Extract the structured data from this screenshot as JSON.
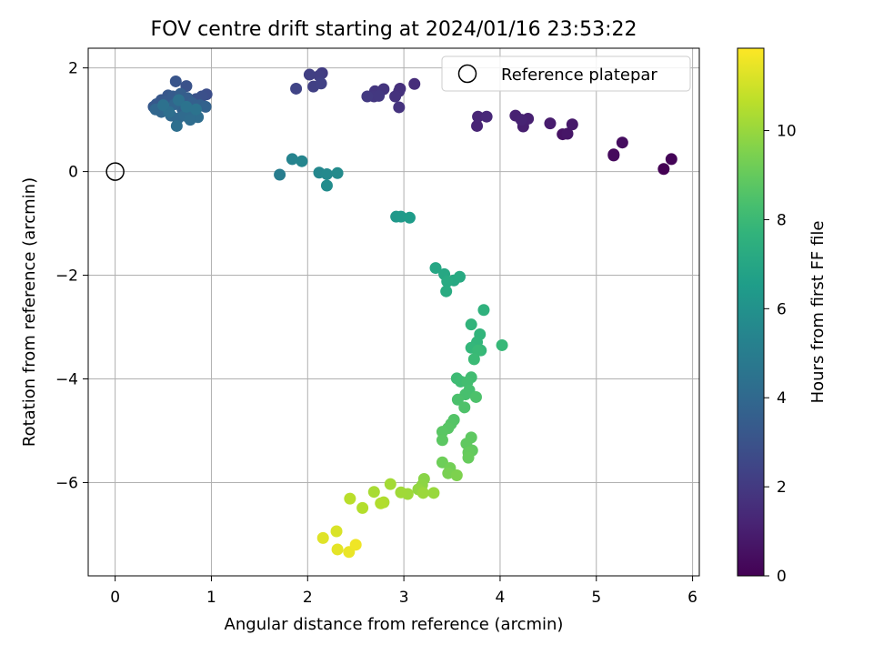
{
  "chart_data": {
    "type": "scatter",
    "title": "FOV centre drift starting at 2024/01/16 23:53:22",
    "xlabel": "Angular distance from reference (arcmin)",
    "ylabel": "Rotation from reference (arcmin)",
    "xlim": [
      -0.28,
      6.07
    ],
    "ylim": [
      -7.8,
      2.38
    ],
    "xticks": [
      0,
      1,
      2,
      3,
      4,
      5,
      6
    ],
    "yticks": [
      -6,
      -4,
      -2,
      0,
      2
    ],
    "grid": true,
    "legend": {
      "placement": "top-right",
      "entries": [
        "Reference platepar"
      ]
    },
    "reference": {
      "x": 0,
      "y": 0
    },
    "colorbar": {
      "label": "Hours from first FF file",
      "min": 0,
      "max": 11.85,
      "ticks": [
        0,
        2,
        4,
        6,
        8,
        10
      ],
      "colormap": "viridis"
    },
    "series": [
      {
        "columns": [
          "x",
          "y",
          "hours"
        ],
        "points": [
          [
            5.7,
            0.05,
            0.0
          ],
          [
            5.78,
            0.24,
            0.1
          ],
          [
            5.18,
            0.33,
            0.2
          ],
          [
            5.18,
            0.31,
            0.3
          ],
          [
            5.27,
            0.56,
            0.4
          ],
          [
            4.65,
            0.72,
            0.6
          ],
          [
            4.7,
            0.73,
            0.7
          ],
          [
            4.75,
            0.91,
            0.8
          ],
          [
            4.52,
            0.93,
            0.9
          ],
          [
            4.24,
            0.87,
            1.0
          ],
          [
            4.29,
            1.02,
            1.05
          ],
          [
            4.16,
            1.08,
            1.1
          ],
          [
            4.22,
            1.0,
            1.15
          ],
          [
            3.76,
            0.88,
            1.2
          ],
          [
            3.77,
            1.06,
            1.25
          ],
          [
            3.86,
            1.06,
            1.3
          ],
          [
            3.11,
            1.69,
            1.5
          ],
          [
            2.96,
            1.6,
            1.6
          ],
          [
            2.95,
            1.55,
            1.65
          ],
          [
            2.91,
            1.45,
            1.7
          ],
          [
            2.95,
            1.24,
            1.75
          ],
          [
            2.79,
            1.59,
            1.8
          ],
          [
            2.7,
            1.55,
            1.85
          ],
          [
            2.69,
            1.45,
            1.9
          ],
          [
            2.74,
            1.46,
            1.95
          ],
          [
            2.62,
            1.45,
            2.0
          ],
          [
            2.15,
            1.9,
            2.1
          ],
          [
            2.12,
            1.85,
            2.15
          ],
          [
            2.02,
            1.87,
            2.2
          ],
          [
            2.06,
            1.64,
            2.25
          ],
          [
            2.14,
            1.7,
            2.3
          ],
          [
            1.88,
            1.6,
            2.4
          ],
          [
            0.95,
            1.49,
            2.8
          ],
          [
            0.9,
            1.45,
            2.9
          ],
          [
            0.84,
            1.4,
            3.0
          ],
          [
            0.74,
            1.65,
            3.0
          ],
          [
            0.63,
            1.74,
            3.1
          ],
          [
            0.55,
            1.47,
            3.2
          ],
          [
            0.48,
            1.38,
            3.2
          ],
          [
            0.43,
            1.3,
            3.3
          ],
          [
            0.4,
            1.25,
            3.3
          ],
          [
            0.52,
            1.35,
            3.4
          ],
          [
            0.6,
            1.45,
            3.4
          ],
          [
            0.68,
            1.5,
            3.5
          ],
          [
            0.75,
            1.42,
            3.5
          ],
          [
            0.8,
            1.32,
            3.6
          ],
          [
            0.88,
            1.28,
            3.6
          ],
          [
            0.94,
            1.25,
            3.7
          ],
          [
            0.7,
            1.2,
            3.7
          ],
          [
            0.62,
            1.3,
            3.8
          ],
          [
            0.55,
            1.22,
            3.8
          ],
          [
            0.48,
            1.15,
            3.9
          ],
          [
            0.42,
            1.2,
            3.9
          ],
          [
            0.58,
            1.08,
            4.0
          ],
          [
            0.65,
            1.02,
            4.0
          ],
          [
            0.72,
            1.08,
            4.1
          ],
          [
            0.8,
            1.15,
            4.1
          ],
          [
            0.86,
            1.05,
            4.2
          ],
          [
            0.78,
            1.0,
            4.2
          ],
          [
            0.64,
            0.88,
            4.3
          ],
          [
            0.56,
            1.15,
            4.3
          ],
          [
            0.5,
            1.28,
            4.4
          ],
          [
            0.66,
            1.38,
            4.4
          ],
          [
            0.74,
            1.25,
            4.5
          ],
          [
            0.84,
            1.2,
            4.5
          ],
          [
            1.71,
            -0.06,
            5.0
          ],
          [
            1.84,
            0.24,
            5.3
          ],
          [
            1.94,
            0.2,
            5.4
          ],
          [
            2.12,
            -0.02,
            5.5
          ],
          [
            2.2,
            -0.05,
            5.6
          ],
          [
            2.31,
            -0.03,
            5.7
          ],
          [
            2.2,
            -0.27,
            5.75
          ],
          [
            2.92,
            -0.87,
            6.3
          ],
          [
            2.97,
            -0.87,
            6.4
          ],
          [
            3.06,
            -0.89,
            6.5
          ],
          [
            3.33,
            -1.86,
            7.0
          ],
          [
            3.42,
            -1.98,
            7.05
          ],
          [
            3.52,
            -2.1,
            7.1
          ],
          [
            3.58,
            -2.03,
            7.15
          ],
          [
            3.45,
            -2.12,
            7.2
          ],
          [
            3.44,
            -2.31,
            7.25
          ],
          [
            3.83,
            -2.67,
            7.6
          ],
          [
            3.7,
            -2.95,
            7.7
          ],
          [
            3.79,
            -3.14,
            7.75
          ],
          [
            3.76,
            -3.29,
            7.8
          ],
          [
            3.7,
            -3.4,
            7.85
          ],
          [
            3.8,
            -3.45,
            7.9
          ],
          [
            4.02,
            -3.35,
            7.95
          ],
          [
            3.77,
            -3.45,
            8.0
          ],
          [
            3.73,
            -3.62,
            8.05
          ],
          [
            3.55,
            -3.99,
            8.1
          ],
          [
            3.59,
            -4.05,
            8.15
          ],
          [
            3.7,
            -3.97,
            8.2
          ],
          [
            3.66,
            -4.06,
            8.25
          ],
          [
            3.68,
            -4.22,
            8.3
          ],
          [
            3.64,
            -4.3,
            8.35
          ],
          [
            3.56,
            -4.4,
            8.4
          ],
          [
            3.75,
            -4.35,
            8.45
          ],
          [
            3.63,
            -4.55,
            8.5
          ],
          [
            3.52,
            -4.79,
            8.6
          ],
          [
            3.49,
            -4.87,
            8.65
          ],
          [
            3.46,
            -4.95,
            8.7
          ],
          [
            3.4,
            -5.02,
            8.75
          ],
          [
            3.4,
            -5.18,
            8.8
          ],
          [
            3.7,
            -5.13,
            8.85
          ],
          [
            3.65,
            -5.25,
            8.9
          ],
          [
            3.71,
            -5.38,
            8.95
          ],
          [
            3.67,
            -5.42,
            9.0
          ],
          [
            3.67,
            -5.52,
            9.05
          ],
          [
            3.4,
            -5.61,
            9.2
          ],
          [
            3.48,
            -5.72,
            9.3
          ],
          [
            3.46,
            -5.82,
            9.4
          ],
          [
            3.55,
            -5.86,
            9.5
          ],
          [
            3.21,
            -5.93,
            9.7
          ],
          [
            3.19,
            -6.05,
            9.8
          ],
          [
            3.15,
            -6.13,
            9.9
          ],
          [
            3.31,
            -6.2,
            10.0
          ],
          [
            3.2,
            -6.2,
            10.05
          ],
          [
            3.04,
            -6.22,
            10.1
          ],
          [
            2.97,
            -6.19,
            10.15
          ],
          [
            2.86,
            -6.03,
            10.2
          ],
          [
            2.69,
            -6.18,
            10.3
          ],
          [
            2.79,
            -6.38,
            10.4
          ],
          [
            2.76,
            -6.4,
            10.45
          ],
          [
            2.57,
            -6.49,
            10.5
          ],
          [
            2.44,
            -6.31,
            10.6
          ],
          [
            2.3,
            -6.94,
            11.2
          ],
          [
            2.16,
            -7.07,
            11.3
          ],
          [
            2.31,
            -7.29,
            11.4
          ],
          [
            2.43,
            -7.34,
            11.5
          ],
          [
            2.5,
            -7.2,
            11.6
          ]
        ]
      }
    ]
  }
}
